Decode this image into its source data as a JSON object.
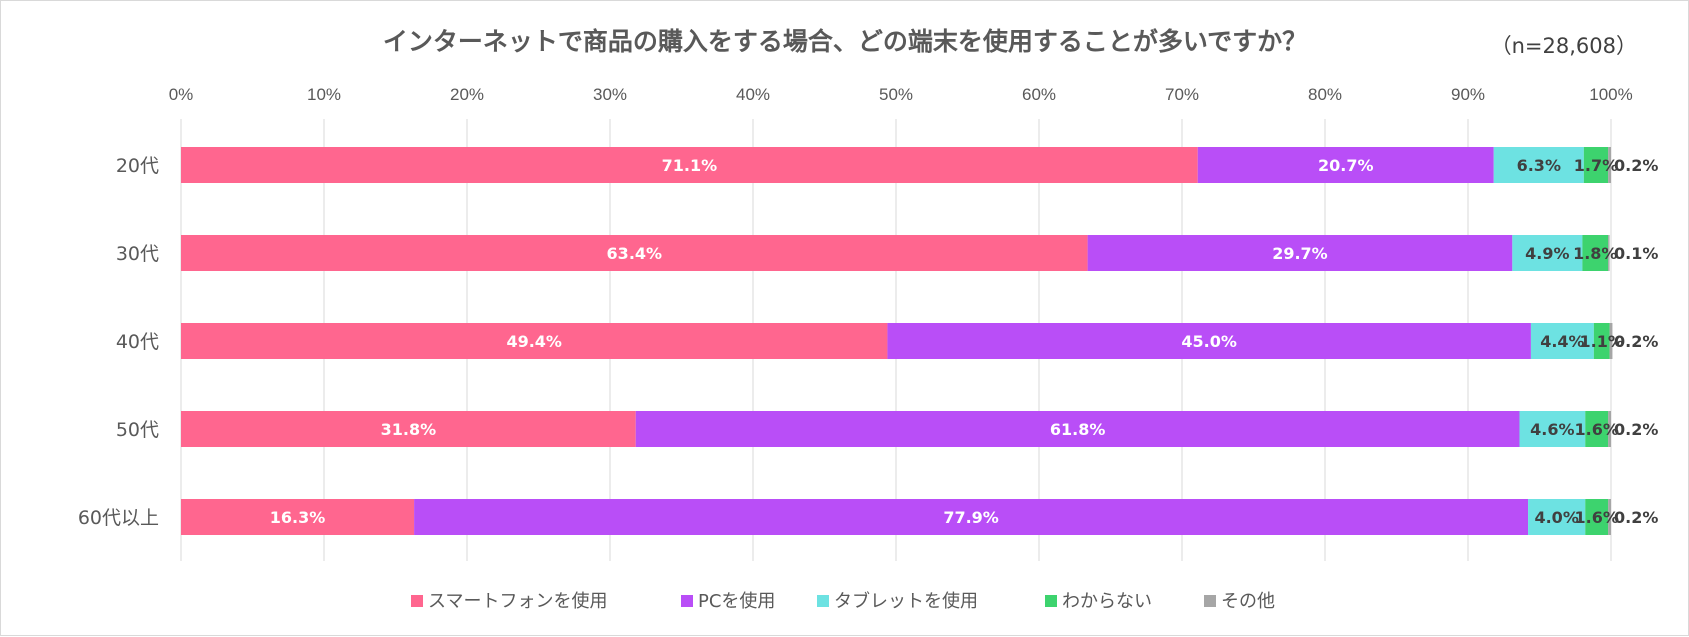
{
  "chart_data": {
    "type": "bar",
    "orientation": "horizontal",
    "stacked": "percent",
    "title": "インターネットで商品の購入をする場合、どの端末を使用することが多いですか？",
    "note": "（n=28,608）",
    "x_ticks": [
      "0%",
      "10%",
      "20%",
      "30%",
      "40%",
      "50%",
      "60%",
      "70%",
      "80%",
      "90%",
      "100%"
    ],
    "xlim": [
      0,
      100
    ],
    "grid": true,
    "legend_position": "bottom",
    "categories": [
      "20代",
      "30代",
      "40代",
      "50代",
      "60代以上"
    ],
    "series": [
      {
        "name": "スマートフォンを使用",
        "color": "#ff668f",
        "values": [
          71.1,
          63.4,
          49.4,
          31.8,
          16.3
        ],
        "labels": [
          "71.1%",
          "63.4%",
          "49.4%",
          "31.8%",
          "16.3%"
        ]
      },
      {
        "name": "PCを使用",
        "color": "#b94ef7",
        "values": [
          20.7,
          29.7,
          45.0,
          61.8,
          77.9
        ],
        "labels": [
          "20.7%",
          "29.7%",
          "45.0%",
          "61.8%",
          "77.9%"
        ]
      },
      {
        "name": "タブレットを使用",
        "color": "#6de2e2",
        "values": [
          6.3,
          4.9,
          4.4,
          4.6,
          4.0
        ],
        "labels": [
          "6.3%",
          "4.9%",
          "4.4%",
          "4.6%",
          "4.0%"
        ]
      },
      {
        "name": "わからない",
        "color": "#3dd36e",
        "values": [
          1.7,
          1.8,
          1.1,
          1.6,
          1.6
        ],
        "labels": [
          "1.7%",
          "1.8%",
          "1.1%",
          "1.6%",
          "1.6%"
        ]
      },
      {
        "name": "その他",
        "color": "#a6a6a6",
        "values": [
          0.2,
          0.1,
          0.2,
          0.2,
          0.2
        ],
        "labels": [
          "0.2%",
          "0.1%",
          "0.2%",
          "0.2%",
          "0.2%"
        ]
      }
    ]
  }
}
